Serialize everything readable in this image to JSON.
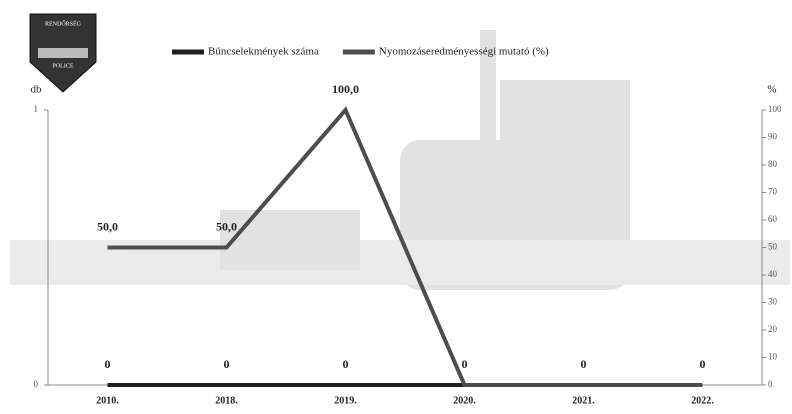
{
  "logo": {
    "top": "RENDŐRSÉG",
    "bottom": "POLICE"
  },
  "chart_data": {
    "type": "line",
    "categories": [
      "2010.",
      "2018.",
      "2019.",
      "2020.",
      "2021.",
      "2022."
    ],
    "y_label": "db",
    "y2_label": "%",
    "ylim": [
      0,
      1
    ],
    "yticks": [
      0,
      1
    ],
    "y2lim": [
      0,
      100
    ],
    "y2ticks": [
      0,
      10,
      20,
      30,
      40,
      50,
      60,
      70,
      80,
      90,
      100
    ],
    "legend": "top",
    "series": [
      {
        "name": "Bűncselekmények száma",
        "color": "#1e1e1e",
        "values": [
          0,
          0,
          0,
          0,
          0,
          0
        ]
      },
      {
        "name": "Nyomozáseredményességi mutató (%)",
        "color": "#4d4d4d",
        "axis": "y2",
        "values": [
          50,
          50,
          100,
          0,
          0,
          0
        ],
        "value_labels": [
          "50,0",
          "50,0",
          "100,0",
          null,
          null,
          null
        ]
      }
    ]
  }
}
